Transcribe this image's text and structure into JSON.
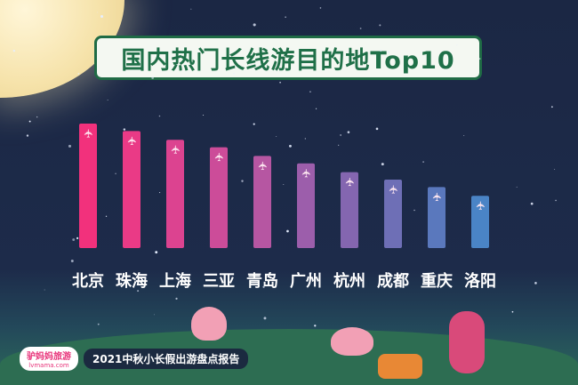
{
  "chart_data": {
    "type": "bar",
    "title": "国内热门长线游目的地Top10",
    "categories": [
      "北京",
      "珠海",
      "上海",
      "三亚",
      "青岛",
      "广州",
      "杭州",
      "成都",
      "重庆",
      "洛阳"
    ],
    "values": [
      100,
      94,
      87,
      81,
      74,
      68,
      61,
      55,
      49,
      42
    ],
    "value_note_unit": "relative bar height (% of tallest), no axis printed",
    "bar_icon": "airplane-icon",
    "colors": [
      "#f2317c",
      "#ea3a86",
      "#dc4390",
      "#cc4c99",
      "#b656a2",
      "#9c5eab",
      "#8466b0",
      "#6e6fb6",
      "#5a78bd",
      "#4a84c6"
    ],
    "background": "#1c2a48"
  },
  "footer": {
    "logo_cn": "驴妈妈旅游",
    "logo_en": "lvmama.com",
    "report": "2021中秋小长假出游盘点报告"
  }
}
